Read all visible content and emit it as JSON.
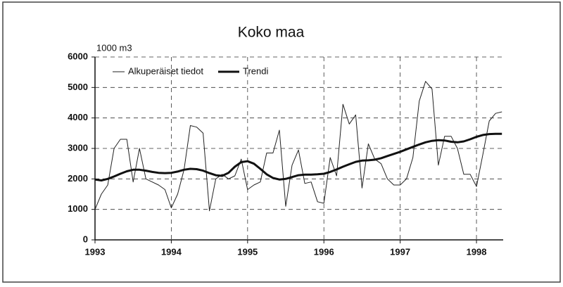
{
  "chart_data": {
    "type": "line",
    "title": "Koko maa",
    "y_label": "1000 m3",
    "x": [
      1993,
      1993.083,
      1993.167,
      1993.25,
      1993.333,
      1993.417,
      1993.5,
      1993.583,
      1993.667,
      1993.75,
      1993.833,
      1993.917,
      1994,
      1994.083,
      1994.167,
      1994.25,
      1994.333,
      1994.417,
      1994.5,
      1994.583,
      1994.667,
      1994.75,
      1994.833,
      1994.917,
      1995,
      1995.083,
      1995.167,
      1995.25,
      1995.333,
      1995.417,
      1995.5,
      1995.583,
      1995.667,
      1995.75,
      1995.833,
      1995.917,
      1996,
      1996.083,
      1996.167,
      1996.25,
      1996.333,
      1996.417,
      1996.5,
      1996.583,
      1996.667,
      1996.75,
      1996.833,
      1996.917,
      1997,
      1997.083,
      1997.167,
      1997.25,
      1997.333,
      1997.417,
      1997.5,
      1997.583,
      1997.667,
      1997.75,
      1997.833,
      1997.917,
      1998,
      1998.083,
      1998.167,
      1998.25,
      1998.333
    ],
    "series": [
      {
        "name": "Alkuperäiset tiedot",
        "color": "#222222",
        "width": 1,
        "values": [
          1000,
          1500,
          1800,
          3000,
          3300,
          3300,
          1900,
          3000,
          2000,
          1900,
          1800,
          1650,
          1050,
          1500,
          2300,
          3750,
          3700,
          3500,
          950,
          2000,
          2150,
          2000,
          2100,
          2650,
          1650,
          1800,
          1900,
          2850,
          2850,
          3600,
          1100,
          2450,
          2950,
          1850,
          1900,
          1250,
          1200,
          2700,
          2100,
          4450,
          3800,
          4100,
          1700,
          3150,
          2650,
          2500,
          2000,
          1800,
          1800,
          2000,
          2700,
          4550,
          5200,
          4950,
          2450,
          3400,
          3400,
          3000,
          2150,
          2150,
          1750,
          2800,
          3900,
          4150,
          4200
        ]
      },
      {
        "name": "Trendi",
        "color": "#111111",
        "width": 3,
        "values": [
          1980,
          1950,
          2000,
          2080,
          2170,
          2250,
          2300,
          2300,
          2270,
          2230,
          2200,
          2190,
          2200,
          2240,
          2300,
          2330,
          2320,
          2270,
          2190,
          2120,
          2100,
          2200,
          2400,
          2550,
          2580,
          2500,
          2330,
          2150,
          2030,
          1980,
          2000,
          2060,
          2120,
          2140,
          2140,
          2150,
          2170,
          2230,
          2310,
          2400,
          2480,
          2560,
          2600,
          2610,
          2630,
          2680,
          2750,
          2820,
          2890,
          2970,
          3050,
          3130,
          3200,
          3250,
          3270,
          3260,
          3220,
          3200,
          3230,
          3300,
          3380,
          3440,
          3470,
          3480,
          3480
        ]
      }
    ],
    "xlim": [
      1993,
      1998.35
    ],
    "xticks": [
      1993,
      1994,
      1995,
      1996,
      1997,
      1998
    ],
    "ylim": [
      0,
      6000
    ],
    "yticks": [
      0,
      1000,
      2000,
      3000,
      4000,
      5000,
      6000
    ],
    "grid": true
  }
}
